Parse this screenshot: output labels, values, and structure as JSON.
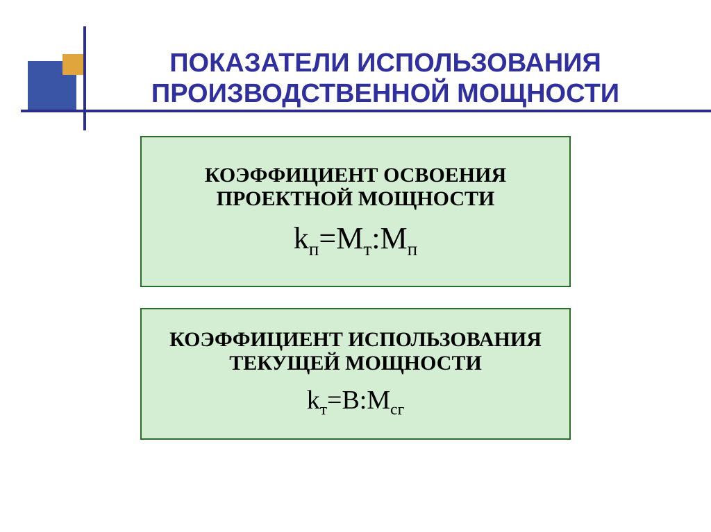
{
  "slide": {
    "title": "ПОКАЗАТЕЛИ ИСПОЛЬЗОВАНИЯ ПРОИЗВОДСТВЕННОЙ МОЩНОСТИ",
    "title_color": "#2f2fa0",
    "title_fontsize": 38,
    "background": "#ffffff",
    "accent_square_color": "#3b55a6",
    "accent_small_square_color": "#e0a53c",
    "accent_line_color": "#2d2d8a"
  },
  "box1": {
    "label": "КОЭФФИЦИЕНТ ОСВОЕНИЯ ПРОЕКТНОЙ МОЩНОСТИ",
    "label_fontsize": 30,
    "formula_html": "k<sub>п</sub>=M<sub>т</sub>:M<sub>п</sub>",
    "formula_fontsize": 44,
    "bg": "#d4eed4",
    "border": "#2a6b2a",
    "text_color": "#000000"
  },
  "box2": {
    "label": "КОЭФФИЦИЕНТ ИСПОЛЬЗОВАНИЯ ТЕКУЩЕЙ МОЩНОСТИ",
    "label_fontsize": 30,
    "formula_html": "k<sub>т</sub>=В:M<sub>сг</sub>",
    "formula_fontsize": 38,
    "bg": "#d4eed4",
    "border": "#2a6b2a",
    "text_color": "#000000"
  }
}
